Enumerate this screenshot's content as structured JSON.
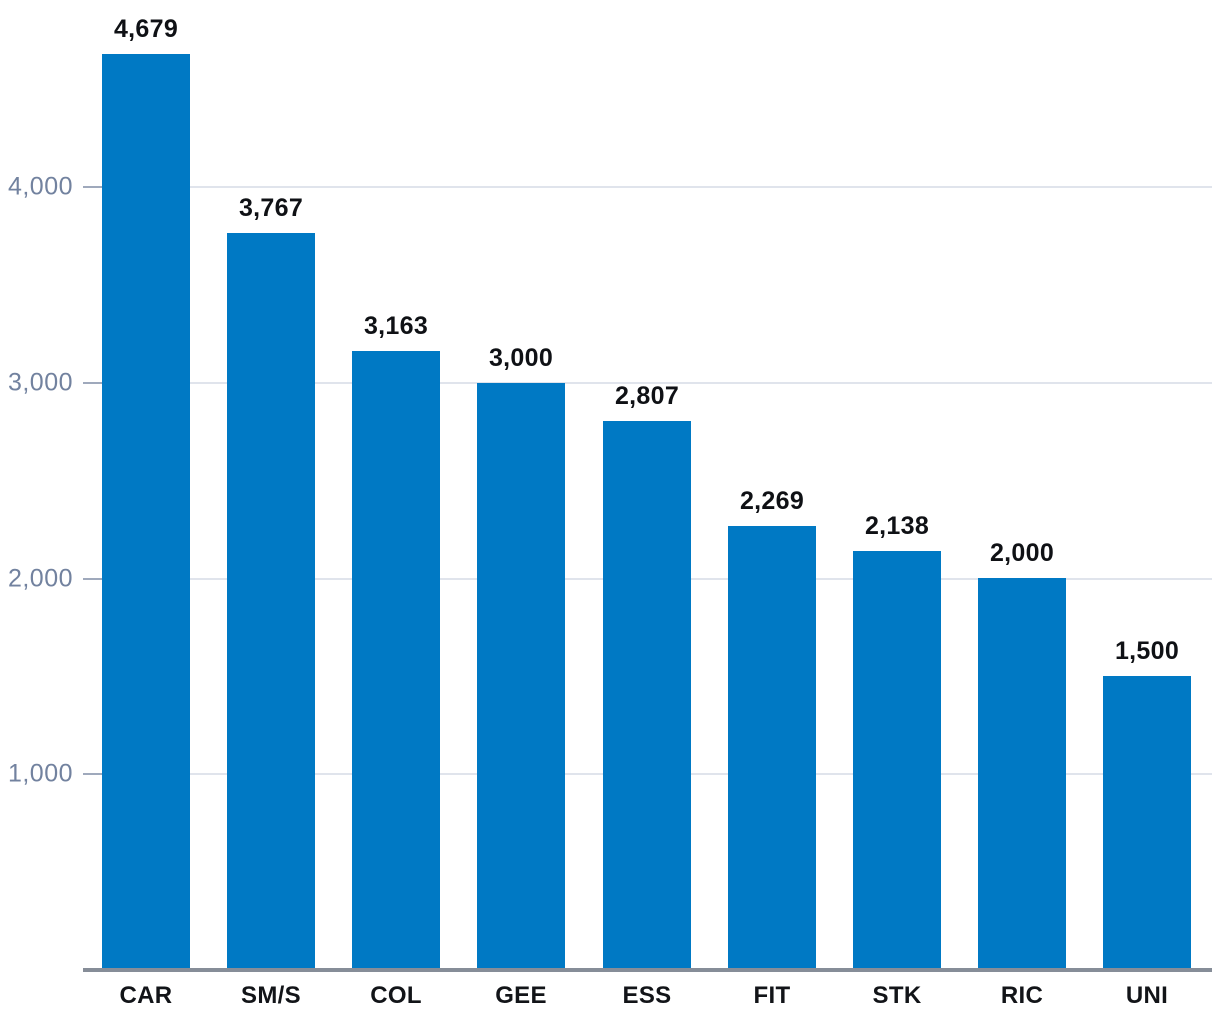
{
  "chart_data": {
    "type": "bar",
    "title": "",
    "xlabel": "",
    "ylabel": "",
    "categories": [
      "CAR",
      "SM/S",
      "COL",
      "GEE",
      "ESS",
      "FIT",
      "STK",
      "RIC",
      "UNI"
    ],
    "values": [
      4679,
      3767,
      3163,
      3000,
      2807,
      2269,
      2138,
      2000,
      1500
    ],
    "value_labels": [
      "4,679",
      "3,767",
      "3,163",
      "3,000",
      "2,807",
      "2,269",
      "2,138",
      "2,000",
      "1,500"
    ],
    "yticks": [
      1000,
      2000,
      3000,
      4000
    ],
    "ytick_labels": [
      "1,000",
      "2,000",
      "3,000",
      "4,000"
    ],
    "ylim": [
      0,
      4956
    ],
    "grid": true,
    "legend": false,
    "colors": {
      "bar": "#0079C4",
      "gridline": "#E0E4EC",
      "tick": "#9FA9BC",
      "ytick_label": "#72829F",
      "axis_line": "#868D98",
      "value_label": "#0F1115",
      "xtick_label": "#121418"
    }
  }
}
